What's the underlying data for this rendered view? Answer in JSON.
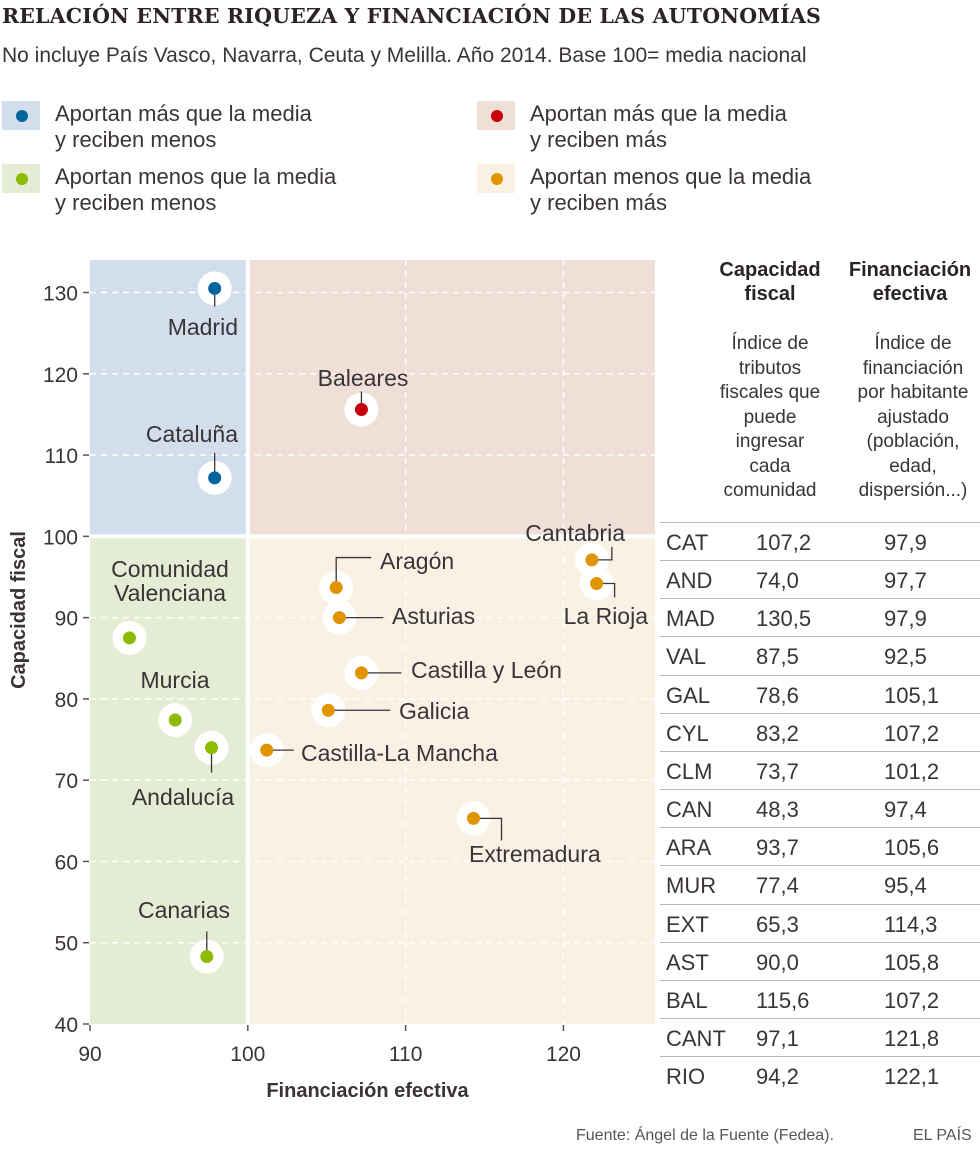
{
  "title": "RELACIÓN ENTRE RIQUEZA Y FINANCIACIÓN DE LAS AUTONOMÍAS",
  "subtitle": "No incluye País Vasco, Navarra, Ceuta y Melilla. Año 2014. Base 100= media nacional",
  "legend": [
    {
      "line1": "Aportan más que la media",
      "line2": "y reciben menos",
      "bg": "#d3deed",
      "dot": "#00659c"
    },
    {
      "line1": "Aportan más que la media",
      "line2": "y reciben más",
      "bg": "#efdfd6",
      "dot": "#c8000e"
    },
    {
      "line1": "Aportan menos que la media",
      "line2": "y reciben menos",
      "bg": "#e4ecd4",
      "dot": "#8dbb00"
    },
    {
      "line1": "Aportan menos que la media",
      "line2": "y reciben más",
      "bg": "#f9f2e4",
      "dot": "#e09400"
    }
  ],
  "chart_data": {
    "type": "scatter",
    "xlabel": "Financiación efectiva",
    "ylabel": "Capacidad fiscal",
    "xlim": [
      90,
      125.8
    ],
    "ylim": [
      40,
      134
    ],
    "xticks": [
      90,
      100,
      110,
      120
    ],
    "yticks": [
      40,
      50,
      60,
      70,
      80,
      90,
      100,
      110,
      120,
      130
    ],
    "grid": true,
    "reference": {
      "x": 100,
      "y": 100
    },
    "points": [
      {
        "name": "Madrid",
        "x": 97.9,
        "y": 130.5,
        "group": 0
      },
      {
        "name": "Cataluña",
        "x": 97.9,
        "y": 107.2,
        "group": 0
      },
      {
        "name": "Baleares",
        "x": 107.2,
        "y": 115.6,
        "group": 1
      },
      {
        "name": "Comunidad Valenciana",
        "x": 92.5,
        "y": 87.5,
        "group": 2
      },
      {
        "name": "Murcia",
        "x": 95.4,
        "y": 77.4,
        "group": 2
      },
      {
        "name": "Andalucía",
        "x": 97.7,
        "y": 74.0,
        "group": 2
      },
      {
        "name": "Canarias",
        "x": 97.4,
        "y": 48.3,
        "group": 2
      },
      {
        "name": "Aragón",
        "x": 105.6,
        "y": 93.7,
        "group": 3
      },
      {
        "name": "Asturias",
        "x": 105.8,
        "y": 90.0,
        "group": 3
      },
      {
        "name": "Castilla y León",
        "x": 107.2,
        "y": 83.2,
        "group": 3
      },
      {
        "name": "Galicia",
        "x": 105.1,
        "y": 78.6,
        "group": 3
      },
      {
        "name": "Castilla-La Mancha",
        "x": 101.2,
        "y": 73.7,
        "group": 3
      },
      {
        "name": "Extremadura",
        "x": 114.3,
        "y": 65.3,
        "group": 3
      },
      {
        "name": "Cantabria",
        "x": 121.8,
        "y": 97.1,
        "group": 3
      },
      {
        "name": "La Rioja",
        "x": 122.1,
        "y": 94.2,
        "group": 3
      }
    ]
  },
  "table": {
    "headers": [
      {
        "title1": "Capacidad",
        "title2": "fiscal",
        "desc": [
          "Índice de",
          "tributos",
          "fiscales que",
          "puede",
          "ingresar",
          "cada",
          "comunidad"
        ]
      },
      {
        "title1": "Financiación",
        "title2": "efectiva",
        "desc": [
          "Índice de",
          "financiación",
          "por habitante",
          "ajustado",
          "(población,",
          "edad,",
          "dispersión...)"
        ]
      }
    ],
    "rows": [
      [
        "CAT",
        "107,2",
        "97,9"
      ],
      [
        "AND",
        "74,0",
        "97,7"
      ],
      [
        "MAD",
        "130,5",
        "97,9"
      ],
      [
        "VAL",
        "87,5",
        "92,5"
      ],
      [
        "GAL",
        "78,6",
        "105,1"
      ],
      [
        "CYL",
        "83,2",
        "107,2"
      ],
      [
        "CLM",
        "73,7",
        "101,2"
      ],
      [
        "CAN",
        "48,3",
        "97,4"
      ],
      [
        "ARA",
        "93,7",
        "105,6"
      ],
      [
        "MUR",
        "77,4",
        "95,4"
      ],
      [
        "EXT",
        "65,3",
        "114,3"
      ],
      [
        "AST",
        "90,0",
        "105,8"
      ],
      [
        "BAL",
        "115,6",
        "107,2"
      ],
      [
        "CANT",
        "97,1",
        "121,8"
      ],
      [
        "RIO",
        "94,2",
        "122,1"
      ]
    ]
  },
  "footer": {
    "source": "Fuente: Ángel de la Fuente (Fedea).",
    "brand": "EL PAÍS"
  }
}
